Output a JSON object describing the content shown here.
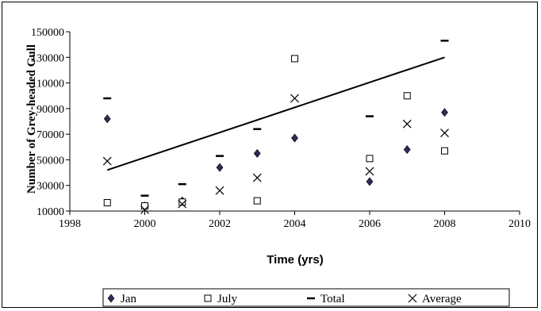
{
  "chart_data": {
    "type": "scatter",
    "title": "",
    "xlabel": "Time (yrs)",
    "ylabel": "Number of Grey-headed Gull",
    "xlim": [
      1998,
      2010
    ],
    "ylim": [
      10000,
      150000
    ],
    "x_ticks": [
      1998,
      2000,
      2002,
      2004,
      2006,
      2008,
      2010
    ],
    "y_ticks": [
      10000,
      30000,
      50000,
      70000,
      90000,
      110000,
      130000,
      150000
    ],
    "grid": false,
    "legend_position": "bottom",
    "series": [
      {
        "name": "Jan",
        "marker": "diamond",
        "color": "#2e2a5c",
        "points": [
          [
            1999,
            82000
          ],
          [
            2000,
            14000
          ],
          [
            2001,
            18000
          ],
          [
            2002,
            44000
          ],
          [
            2003,
            55000
          ],
          [
            2004,
            67000
          ],
          [
            2006,
            33000
          ],
          [
            2007,
            58000
          ],
          [
            2008,
            87000
          ]
        ]
      },
      {
        "name": "July",
        "marker": "square",
        "color": "#000000",
        "points": [
          [
            1999,
            16500
          ],
          [
            2000,
            14000
          ],
          [
            2001,
            17000
          ],
          [
            2003,
            18000
          ],
          [
            2004,
            129000
          ],
          [
            2006,
            51000
          ],
          [
            2007,
            100000
          ],
          [
            2008,
            57000
          ]
        ]
      },
      {
        "name": "Total",
        "marker": "dash",
        "color": "#000000",
        "points": [
          [
            1999,
            98000
          ],
          [
            2000,
            22000
          ],
          [
            2001,
            31000
          ],
          [
            2002,
            53000
          ],
          [
            2003,
            74000
          ],
          [
            2006,
            84000
          ],
          [
            2008,
            143000
          ]
        ]
      },
      {
        "name": "Average",
        "marker": "x",
        "color": "#000000",
        "points": [
          [
            1999,
            49000
          ],
          [
            2000,
            11000
          ],
          [
            2001,
            15500
          ],
          [
            2002,
            26000
          ],
          [
            2003,
            36000
          ],
          [
            2004,
            98000
          ],
          [
            2006,
            41000
          ],
          [
            2007,
            78000
          ],
          [
            2008,
            71000
          ]
        ]
      }
    ],
    "trendline": {
      "from": [
        1999,
        42000
      ],
      "to": [
        2008,
        130000
      ]
    }
  }
}
